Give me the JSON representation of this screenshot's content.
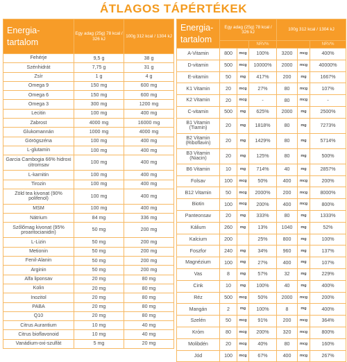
{
  "title": "ÁTLAGOS TÁPÉRTÉKEK",
  "left_table": {
    "header": {
      "col1": "Energia-\ntartalom",
      "col2": "Egy adag (25g) 78 kcal / 326 kJ",
      "col3": "100g 312 kcal / 1304 kJ"
    },
    "rows": [
      {
        "name": "Fehérje",
        "a": "9,5 g",
        "b": "38 g"
      },
      {
        "name": "Szénhidrát",
        "a": "7,75 g",
        "b": "31 g"
      },
      {
        "name": "Zsír",
        "a": "1 g",
        "b": "4 g"
      },
      {
        "name": "Omega 9",
        "a": "150 mg",
        "b": "600 mg"
      },
      {
        "name": "Omega 6",
        "a": "150 mg",
        "b": "600 mg"
      },
      {
        "name": "Omega 3",
        "a": "300 mg",
        "b": "1200 mg"
      },
      {
        "name": "Lecitin",
        "a": "100 mg",
        "b": "400 mg"
      },
      {
        "name": "Zabrost",
        "a": "4000 mg",
        "b": "16000 mg"
      },
      {
        "name": "Glukomannán",
        "a": "1000 mg",
        "b": "4000 mg"
      },
      {
        "name": "Görögszéna",
        "a": "100 mg",
        "b": "400 mg"
      },
      {
        "name": "L-glutamin",
        "a": "100 mg",
        "b": "400 mg"
      },
      {
        "name": "Garcia Cambogia 66% hidroxi citromsav",
        "a": "100 mg",
        "b": "400 mg"
      },
      {
        "name": "L-karnitin",
        "a": "100 mg",
        "b": "400 mg"
      },
      {
        "name": "Tirozin",
        "a": "100 mg",
        "b": "400 mg"
      },
      {
        "name": "Zöld tea kivonat (90% polifenol)",
        "a": "100 mg",
        "b": "400 mg"
      },
      {
        "name": "MSM",
        "a": "100 mg",
        "b": "400 mg"
      },
      {
        "name": "Nátrium",
        "a": "84 mg",
        "b": "336 mg"
      },
      {
        "name": "Szőlőmag kivonat (95% proantocianidin)",
        "a": "50 mg",
        "b": "200 mg"
      },
      {
        "name": "L-Lizin",
        "a": "50 mg",
        "b": "200 mg"
      },
      {
        "name": "Metionin",
        "a": "50 mg",
        "b": "200 mg"
      },
      {
        "name": "Fenil-Alanin",
        "a": "50 mg",
        "b": "200 mg"
      },
      {
        "name": "Arginin",
        "a": "50 mg",
        "b": "200 mg"
      },
      {
        "name": "Alfa liponsav",
        "a": "20 mg",
        "b": "80 mg"
      },
      {
        "name": "Kolin",
        "a": "20 mg",
        "b": "80 mg"
      },
      {
        "name": "Inozitol",
        "a": "20 mg",
        "b": "80 mg"
      },
      {
        "name": "PABA",
        "a": "20 mg",
        "b": "80 mg"
      },
      {
        "name": "Q10",
        "a": "20 mg",
        "b": "80 mg"
      },
      {
        "name": "Citrus Aurantium",
        "a": "10 mg",
        "b": "40 mg"
      },
      {
        "name": "Citrus bioflavonoid",
        "a": "10 mg",
        "b": "40 mg"
      },
      {
        "name": "Vanádium-oxi-szulfát",
        "a": "5 mg",
        "b": "20 mg"
      }
    ]
  },
  "right_table": {
    "header": {
      "col1": "Energia-\ntartalom",
      "col2": "Egy adag (25g) 78 kcal / 326 kJ",
      "col3": "100g 312 kcal / 1304 kJ",
      "nrv1": "NRV%",
      "nrv2": "NRV%"
    },
    "rows": [
      {
        "name": "A-Vitamin",
        "a_val": "800",
        "a_unit": "mcg",
        "a_nrv": "100%",
        "b_val": "3200",
        "b_unit": "mcg",
        "b_nrv": "400%"
      },
      {
        "name": "D-vitamin",
        "a_val": "500",
        "a_unit": "mcg",
        "a_nrv": "10000%",
        "b_val": "2000",
        "b_unit": "mcg",
        "b_nrv": "40000%"
      },
      {
        "name": "E-vitamin",
        "a_val": "50",
        "a_unit": "mg",
        "a_nrv": "417%",
        "b_val": "200",
        "b_unit": "mg",
        "b_nrv": "1667%"
      },
      {
        "name": "K1 Vitamin",
        "a_val": "20",
        "a_unit": "mcg",
        "a_nrv": "27%",
        "b_val": "80",
        "b_unit": "mcg",
        "b_nrv": "107%"
      },
      {
        "name": "K2 Vitamin",
        "a_val": "20",
        "a_unit": "mcg",
        "a_nrv": "-",
        "b_val": "80",
        "b_unit": "mcg",
        "b_nrv": "-"
      },
      {
        "name": "C-vitamin",
        "a_val": "500",
        "a_unit": "mg",
        "a_nrv": "625%",
        "b_val": "2000",
        "b_unit": "mg",
        "b_nrv": "2500%"
      },
      {
        "name": "B1 Vitamin (Tiamin)",
        "a_val": "20",
        "a_unit": "mg",
        "a_nrv": "1818%",
        "b_val": "80",
        "b_unit": "mg",
        "b_nrv": "7273%"
      },
      {
        "name": "B2 Vitamin (Riboflavin)",
        "a_val": "20",
        "a_unit": "mg",
        "a_nrv": "1429%",
        "b_val": "80",
        "b_unit": "mg",
        "b_nrv": "5714%"
      },
      {
        "name": "B3 Vitamin (Niacin)",
        "a_val": "20",
        "a_unit": "mg",
        "a_nrv": "125%",
        "b_val": "80",
        "b_unit": "mg",
        "b_nrv": "500%"
      },
      {
        "name": "B6 Vitamin",
        "a_val": "10",
        "a_unit": "mg",
        "a_nrv": "714%",
        "b_val": "40",
        "b_unit": "mg",
        "b_nrv": "2857%"
      },
      {
        "name": "Folsav",
        "a_val": "100",
        "a_unit": "mcg",
        "a_nrv": "50%",
        "b_val": "400",
        "b_unit": "mcg",
        "b_nrv": "200%"
      },
      {
        "name": "B12 Vitamin",
        "a_val": "50",
        "a_unit": "mcg",
        "a_nrv": "2000%",
        "b_val": "200",
        "b_unit": "mcg",
        "b_nrv": "8000%"
      },
      {
        "name": "Biotin",
        "a_val": "100",
        "a_unit": "mcg",
        "a_nrv": "200%",
        "b_val": "400",
        "b_unit": "mcg",
        "b_nrv": "800%"
      },
      {
        "name": "Panteonsav",
        "a_val": "20",
        "a_unit": "mg",
        "a_nrv": "333%",
        "b_val": "80",
        "b_unit": "mg",
        "b_nrv": "1333%"
      },
      {
        "name": "Kálium",
        "a_val": "260",
        "a_unit": "mg",
        "a_nrv": "13%",
        "b_val": "1040",
        "b_unit": "mg",
        "b_nrv": "52%"
      },
      {
        "name": "Kalcium",
        "a_val": "200",
        "a_unit": "",
        "a_nrv": "25%",
        "b_val": "800",
        "b_unit": "mg",
        "b_nrv": "100%"
      },
      {
        "name": "Foszfor",
        "a_val": "240",
        "a_unit": "mg",
        "a_nrv": "34%",
        "b_val": "960",
        "b_unit": "mg",
        "b_nrv": "137%"
      },
      {
        "name": "Magnézium",
        "a_val": "100",
        "a_unit": "mg",
        "a_nrv": "27%",
        "b_val": "400",
        "b_unit": "mg",
        "b_nrv": "107%"
      },
      {
        "name": "Vas",
        "a_val": "8",
        "a_unit": "mg",
        "a_nrv": "57%",
        "b_val": "32",
        "b_unit": "mg",
        "b_nrv": "229%"
      },
      {
        "name": "Cink",
        "a_val": "10",
        "a_unit": "mg",
        "a_nrv": "100%",
        "b_val": "40",
        "b_unit": "mg",
        "b_nrv": "400%"
      },
      {
        "name": "Réz",
        "a_val": "500",
        "a_unit": "mcg",
        "a_nrv": "50%",
        "b_val": "2000",
        "b_unit": "mcg",
        "b_nrv": "200%"
      },
      {
        "name": "Mangán",
        "a_val": "2",
        "a_unit": "mg",
        "a_nrv": "100%",
        "b_val": "8",
        "b_unit": "mg",
        "b_nrv": "400%"
      },
      {
        "name": "Szelén",
        "a_val": "50",
        "a_unit": "mcg",
        "a_nrv": "91%",
        "b_val": "200",
        "b_unit": "mcg",
        "b_nrv": "364%"
      },
      {
        "name": "Króm",
        "a_val": "80",
        "a_unit": "mcg",
        "a_nrv": "200%",
        "b_val": "320",
        "b_unit": "mcg",
        "b_nrv": "800%"
      },
      {
        "name": "Molibdén",
        "a_val": "20",
        "a_unit": "mcg",
        "a_nrv": "40%",
        "b_val": "80",
        "b_unit": "mcg",
        "b_nrv": "160%"
      },
      {
        "name": "Jód",
        "a_val": "100",
        "a_unit": "mcg",
        "a_nrv": "67%",
        "b_val": "400",
        "b_unit": "mcg",
        "b_nrv": "267%"
      }
    ]
  }
}
